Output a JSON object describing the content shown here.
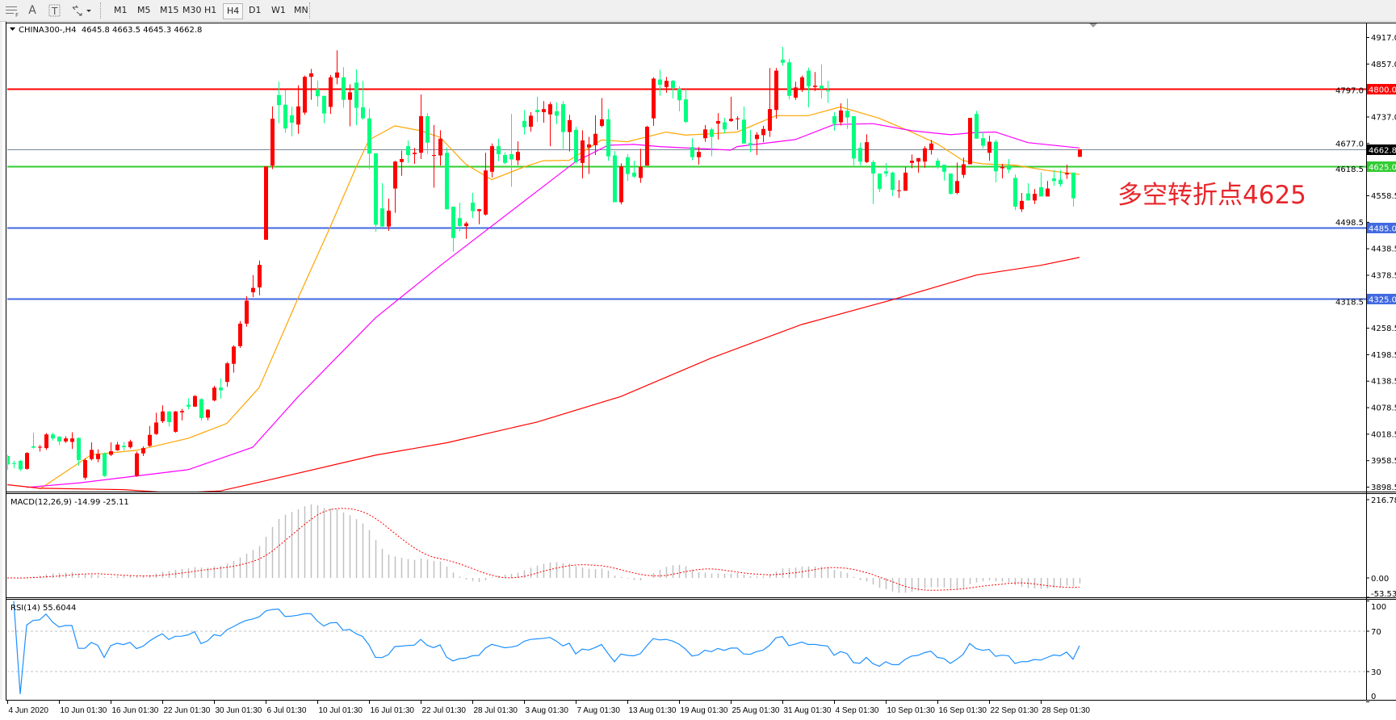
{
  "toolbar": {
    "icons": [
      "period-separator-icon",
      "text-icon",
      "text-label-icon",
      "arrows-icon"
    ],
    "icon_glyphs": {
      "text": "A",
      "label": "T"
    },
    "timeframes": [
      "M1",
      "M5",
      "M15",
      "M30",
      "H1",
      "H4",
      "D1",
      "W1",
      "MN"
    ],
    "selected_timeframe": "H4"
  },
  "chart_data": {
    "type": "candlestick",
    "header": "CHINA300-,H4  4645.8 4663.5 4645.3 4662.8",
    "symbol": "CHINA300-",
    "timeframe": "H4",
    "colors": {
      "up": "#ff0000",
      "down": "#00ff7f"
    },
    "ohlc": [
      [
        3968,
        3971,
        3937,
        3949
      ],
      [
        3952,
        3957,
        3940,
        3950
      ],
      [
        3957,
        3959,
        3934,
        3938
      ],
      [
        3939,
        3977,
        3937,
        3975
      ],
      [
        3990,
        4021,
        3985,
        3987
      ],
      [
        3987,
        3993,
        3978,
        3989
      ],
      [
        3986,
        4020,
        3982,
        4017
      ],
      [
        4017,
        4021,
        4003,
        4008
      ],
      [
        4012,
        4013,
        3993,
        4001
      ],
      [
        4001,
        4013,
        3998,
        4008
      ],
      [
        4000,
        4022,
        3984,
        4008
      ],
      [
        4009,
        4010,
        3946,
        3959
      ],
      [
        3919,
        3963,
        3914,
        3959
      ],
      [
        3961,
        3999,
        3958,
        3982
      ],
      [
        3961,
        3983,
        3954,
        3973
      ],
      [
        3974,
        3976,
        3921,
        3923
      ],
      [
        3971,
        3999,
        3968,
        3979
      ],
      [
        3981,
        4000,
        3980,
        3994
      ],
      [
        3991,
        4000,
        3981,
        3988
      ],
      [
        3988,
        4005,
        3985,
        4001
      ],
      [
        3923,
        3978,
        3921,
        3974
      ],
      [
        3974,
        3990,
        3968,
        3986
      ],
      [
        3991,
        4036,
        3989,
        4016
      ],
      [
        4018,
        4066,
        4016,
        4044
      ],
      [
        4047,
        4083,
        4043,
        4069
      ],
      [
        4069,
        4070,
        4035,
        4045
      ],
      [
        4023,
        4070,
        4021,
        4069
      ],
      [
        4067,
        4075,
        4049,
        4070
      ],
      [
        4084,
        4099,
        4074,
        4080
      ],
      [
        4080,
        4106,
        4079,
        4104
      ],
      [
        4097,
        4099,
        4048,
        4054
      ],
      [
        4055,
        4074,
        4049,
        4073
      ],
      [
        4094,
        4127,
        4092,
        4123
      ],
      [
        4123,
        4144,
        4098,
        4117
      ],
      [
        4136,
        4181,
        4125,
        4178
      ],
      [
        4177,
        4219,
        4157,
        4216
      ],
      [
        4217,
        4274,
        4213,
        4268
      ],
      [
        4268,
        4330,
        4261,
        4320
      ],
      [
        4339,
        4378,
        4328,
        4349
      ],
      [
        4350,
        4411,
        4332,
        4401
      ],
      [
        4458,
        4624,
        4458,
        4624
      ],
      [
        4626,
        4760,
        4618,
        4732
      ],
      [
        4786,
        4816,
        4722,
        4763
      ],
      [
        4764,
        4797,
        4700,
        4710
      ],
      [
        4740,
        4760,
        4692,
        4723
      ],
      [
        4719,
        4808,
        4698,
        4760
      ],
      [
        4746,
        4830,
        4741,
        4827
      ],
      [
        4827,
        4845,
        4775,
        4835
      ],
      [
        4799,
        4819,
        4760,
        4783
      ],
      [
        4784,
        4784,
        4722,
        4744
      ],
      [
        4759,
        4831,
        4743,
        4826
      ],
      [
        4825,
        4887,
        4810,
        4837
      ],
      [
        4826,
        4849,
        4757,
        4775
      ],
      [
        4775,
        4810,
        4715,
        4792
      ],
      [
        4814,
        4844,
        4718,
        4757
      ],
      [
        4758,
        4818,
        4730,
        4733
      ],
      [
        4733,
        4755,
        4618,
        4653
      ],
      [
        4654,
        4654,
        4476,
        4492
      ],
      [
        4529,
        4586,
        4488,
        4488
      ],
      [
        4488,
        4551,
        4478,
        4524
      ],
      [
        4574,
        4637,
        4519,
        4635
      ],
      [
        4634,
        4660,
        4603,
        4641
      ],
      [
        4670,
        4683,
        4632,
        4650
      ],
      [
        4652,
        4666,
        4630,
        4655
      ],
      [
        4655,
        4787,
        4641,
        4738
      ],
      [
        4738,
        4745,
        4652,
        4678
      ],
      [
        4648,
        4718,
        4576,
        4650
      ],
      [
        4649,
        4706,
        4626,
        4687
      ],
      [
        4655,
        4667,
        4527,
        4527
      ],
      [
        4533,
        4533,
        4431,
        4462
      ],
      [
        4507,
        4542,
        4477,
        4489
      ],
      [
        4489,
        4499,
        4460,
        4495
      ],
      [
        4542,
        4564,
        4507,
        4523
      ],
      [
        4523,
        4528,
        4493,
        4527
      ],
      [
        4515,
        4655,
        4513,
        4615
      ],
      [
        4612,
        4676,
        4599,
        4670
      ],
      [
        4670,
        4687,
        4636,
        4652
      ],
      [
        4650,
        4656,
        4629,
        4632
      ],
      [
        4652,
        4743,
        4578,
        4640
      ],
      [
        4638,
        4681,
        4627,
        4657
      ],
      [
        4727,
        4752,
        4696,
        4713
      ],
      [
        4714,
        4747,
        4703,
        4739
      ],
      [
        4752,
        4782,
        4725,
        4747
      ],
      [
        4747,
        4772,
        4723,
        4754
      ],
      [
        4742,
        4770,
        4670,
        4765
      ],
      [
        4749,
        4769,
        4720,
        4739
      ],
      [
        4765,
        4772,
        4664,
        4702
      ],
      [
        4702,
        4741,
        4658,
        4729
      ],
      [
        4707,
        4714,
        4630,
        4634
      ],
      [
        4632,
        4706,
        4597,
        4683
      ],
      [
        4667,
        4691,
        4607,
        4674
      ],
      [
        4672,
        4740,
        4650,
        4698
      ],
      [
        4716,
        4779,
        4713,
        4731
      ],
      [
        4731,
        4754,
        4637,
        4647
      ],
      [
        4649,
        4659,
        4543,
        4543
      ],
      [
        4543,
        4631,
        4538,
        4624
      ],
      [
        4645,
        4652,
        4591,
        4607
      ],
      [
        4610,
        4637,
        4598,
        4601
      ],
      [
        4598,
        4664,
        4587,
        4623
      ],
      [
        4626,
        4716,
        4626,
        4714
      ],
      [
        4733,
        4826,
        4716,
        4823
      ],
      [
        4821,
        4843,
        4784,
        4809
      ],
      [
        4804,
        4827,
        4791,
        4818
      ],
      [
        4818,
        4820,
        4778,
        4802
      ],
      [
        4800,
        4806,
        4749,
        4774
      ],
      [
        4776,
        4799,
        4722,
        4725
      ],
      [
        4668,
        4688,
        4638,
        4645
      ],
      [
        4645,
        4668,
        4628,
        4657
      ],
      [
        4688,
        4718,
        4680,
        4708
      ],
      [
        4708,
        4712,
        4647,
        4691
      ],
      [
        4721,
        4745,
        4685,
        4727
      ],
      [
        4724,
        4734,
        4699,
        4708
      ],
      [
        4727,
        4782,
        4725,
        4732
      ],
      [
        4731,
        4738,
        4707,
        4733
      ],
      [
        4730,
        4760,
        4676,
        4676
      ],
      [
        4677,
        4707,
        4656,
        4672
      ],
      [
        4686,
        4702,
        4650,
        4696
      ],
      [
        4695,
        4716,
        4679,
        4709
      ],
      [
        4705,
        4847,
        4691,
        4754
      ],
      [
        4752,
        4847,
        4732,
        4841
      ],
      [
        4866,
        4895,
        4852,
        4859
      ],
      [
        4860,
        4868,
        4776,
        4784
      ],
      [
        4780,
        4816,
        4775,
        4803
      ],
      [
        4797,
        4830,
        4793,
        4826
      ],
      [
        4841,
        4848,
        4758,
        4806
      ],
      [
        4804,
        4838,
        4795,
        4807
      ],
      [
        4807,
        4855,
        4778,
        4800
      ],
      [
        4796,
        4818,
        4768,
        4795
      ],
      [
        4738,
        4747,
        4705,
        4721
      ],
      [
        4724,
        4767,
        4717,
        4751
      ],
      [
        4750,
        4778,
        4709,
        4735
      ],
      [
        4738,
        4738,
        4626,
        4642
      ],
      [
        4666,
        4678,
        4627,
        4635
      ],
      [
        4634,
        4697,
        4632,
        4679
      ],
      [
        4634,
        4638,
        4539,
        4608
      ],
      [
        4608,
        4608,
        4566,
        4573
      ],
      [
        4613,
        4632,
        4601,
        4608
      ],
      [
        4610,
        4612,
        4557,
        4571
      ],
      [
        4569,
        4593,
        4553,
        4570
      ],
      [
        4569,
        4623,
        4569,
        4610
      ],
      [
        4632,
        4651,
        4620,
        4637
      ],
      [
        4635,
        4643,
        4610,
        4643
      ],
      [
        4635,
        4670,
        4621,
        4665
      ],
      [
        4661,
        4684,
        4651,
        4676
      ],
      [
        4637,
        4643,
        4619,
        4623
      ],
      [
        4628,
        4628,
        4592,
        4612
      ],
      [
        4608,
        4608,
        4560,
        4562
      ],
      [
        4564,
        4633,
        4561,
        4591
      ],
      [
        4605,
        4644,
        4598,
        4629
      ],
      [
        4629,
        4734,
        4629,
        4734
      ],
      [
        4743,
        4750,
        4687,
        4687
      ],
      [
        4688,
        4702,
        4665,
        4671
      ],
      [
        4655,
        4694,
        4637,
        4680
      ],
      [
        4680,
        4685,
        4588,
        4613
      ],
      [
        4620,
        4630,
        4597,
        4623
      ],
      [
        4626,
        4641,
        4609,
        4617
      ],
      [
        4598,
        4606,
        4525,
        4533
      ],
      [
        4527,
        4564,
        4521,
        4546
      ],
      [
        4563,
        4586,
        4547,
        4547
      ],
      [
        4547,
        4573,
        4539,
        4562
      ],
      [
        4577,
        4611,
        4556,
        4556
      ],
      [
        4556,
        4591,
        4556,
        4574
      ],
      [
        4597,
        4616,
        4580,
        4591
      ],
      [
        4594,
        4616,
        4578,
        4584
      ],
      [
        4606,
        4628,
        4596,
        4609
      ],
      [
        4610,
        4610,
        4533,
        4552
      ],
      [
        4645.8,
        4663.5,
        4645.3,
        4662.8
      ]
    ],
    "y_axis": {
      "range": [
        3898.5,
        4917.0
      ],
      "tick_labels": [
        "4917.0",
        "4857.0",
        "4797.0",
        "4737.0",
        "4677.0",
        "4618.5",
        "4558.5",
        "4498.5",
        "4438.5",
        "4378.5",
        "4318.5",
        "4258.5",
        "4198.5",
        "4138.5",
        "4078.5",
        "4018.5",
        "3958.5",
        "3898.5"
      ]
    },
    "x_axis": {
      "tick_every_bars": 8,
      "tick_labels": [
        "4 Jun 2020",
        "10 Jun 01:30",
        "16 Jun 01:30",
        "22 Jun 01:30",
        "30 Jun 01:30",
        "6 Jul 01:30",
        "10 Jul 01:30",
        "16 Jul 01:30",
        "22 Jul 01:30",
        "28 Jul 01:30",
        "3 Aug 01:30",
        "7 Aug 01:30",
        "13 Aug 01:30",
        "19 Aug 01:30",
        "25 Aug 01:30",
        "31 Aug 01:30",
        "4 Sep 01:30",
        "10 Sep 01:30",
        "16 Sep 01:30",
        "22 Sep 01:30",
        "28 Sep 01:30"
      ]
    },
    "moving_averages": [
      {
        "color": "#ffa500",
        "points": [
          [
            5,
            3893
          ],
          [
            13,
            3971
          ],
          [
            20,
            3981
          ],
          [
            28,
            4008
          ],
          [
            34,
            4042
          ],
          [
            39,
            4123
          ],
          [
            45,
            4325
          ],
          [
            50,
            4487
          ],
          [
            54,
            4622
          ],
          [
            56,
            4684
          ],
          [
            60,
            4716
          ],
          [
            64,
            4705
          ],
          [
            67,
            4690
          ],
          [
            71,
            4629
          ],
          [
            75,
            4594
          ],
          [
            80,
            4623
          ],
          [
            83,
            4637
          ],
          [
            87,
            4638
          ],
          [
            92,
            4684
          ],
          [
            96,
            4680
          ],
          [
            102,
            4702
          ],
          [
            105,
            4695
          ],
          [
            110,
            4699
          ],
          [
            113,
            4702
          ],
          [
            119,
            4739
          ],
          [
            124,
            4739
          ],
          [
            129,
            4759
          ],
          [
            135,
            4733
          ],
          [
            140,
            4702
          ],
          [
            144,
            4675
          ],
          [
            148,
            4637
          ],
          [
            151,
            4630
          ],
          [
            156,
            4627
          ],
          [
            161,
            4615
          ],
          [
            166,
            4606
          ]
        ]
      },
      {
        "color": "#ff00ff",
        "points": [
          [
            3,
            3897
          ],
          [
            11,
            3907
          ],
          [
            28,
            3937
          ],
          [
            38,
            3988
          ],
          [
            45,
            4102
          ],
          [
            57,
            4281
          ],
          [
            67,
            4399
          ],
          [
            88,
            4635
          ],
          [
            93,
            4672
          ],
          [
            97,
            4674
          ],
          [
            101,
            4669
          ],
          [
            112,
            4661
          ],
          [
            113,
            4669
          ],
          [
            122,
            4685
          ],
          [
            128,
            4719
          ],
          [
            134,
            4721
          ],
          [
            140,
            4705
          ],
          [
            146,
            4696
          ],
          [
            150,
            4701
          ],
          [
            153,
            4702
          ],
          [
            158,
            4678
          ],
          [
            166,
            4666
          ]
        ]
      },
      {
        "color": "#ff0000",
        "points": [
          [
            0,
            3903
          ],
          [
            5,
            3895
          ],
          [
            18,
            3892
          ],
          [
            26,
            3884
          ],
          [
            33,
            3889
          ],
          [
            40,
            3912
          ],
          [
            57,
            3970
          ],
          [
            68,
            3998
          ],
          [
            82,
            4045
          ],
          [
            95,
            4103
          ],
          [
            109,
            4190
          ],
          [
            123,
            4266
          ],
          [
            137,
            4322
          ],
          [
            150,
            4378
          ],
          [
            160,
            4400
          ],
          [
            166,
            4418
          ]
        ]
      }
    ],
    "horizontal_lines": [
      {
        "price": 4800.0,
        "label": "4800.0",
        "color": "#ff0000",
        "text_color": "#ffffff"
      },
      {
        "price": 4662.8,
        "label": "4662.8",
        "color": "#778899",
        "box_color": "#000000",
        "text_color": "#ffffff"
      },
      {
        "price": 4625.0,
        "label": "4625.0",
        "color": "#32cd32",
        "text_color": "#ffffff"
      },
      {
        "price": 4485.0,
        "label": "4485.0",
        "color": "#4169e1",
        "text_color": "#ffffff"
      },
      {
        "price": 4325.0,
        "label": "4325.0",
        "color": "#4169e1",
        "text_color": "#ffffff"
      }
    ],
    "annotation": {
      "text": "多空转折点4625",
      "color": "#e8262b"
    },
    "macd": {
      "label": "MACD(12,26,9) -14.99 -25.11",
      "params": [
        12,
        26,
        9
      ],
      "range": [
        -53.53,
        216.78
      ],
      "axis_labels": [
        "216.78",
        "0.00",
        "-53.53"
      ],
      "histogram_color": "#c0c0c0",
      "signal_color": "#ff0000"
    },
    "rsi": {
      "label": "RSI(14) 55.6044",
      "period": 14,
      "levels": [
        70,
        30
      ],
      "axis_labels": [
        "100",
        "70",
        "30",
        "0"
      ],
      "color": "#1e90ff"
    }
  }
}
